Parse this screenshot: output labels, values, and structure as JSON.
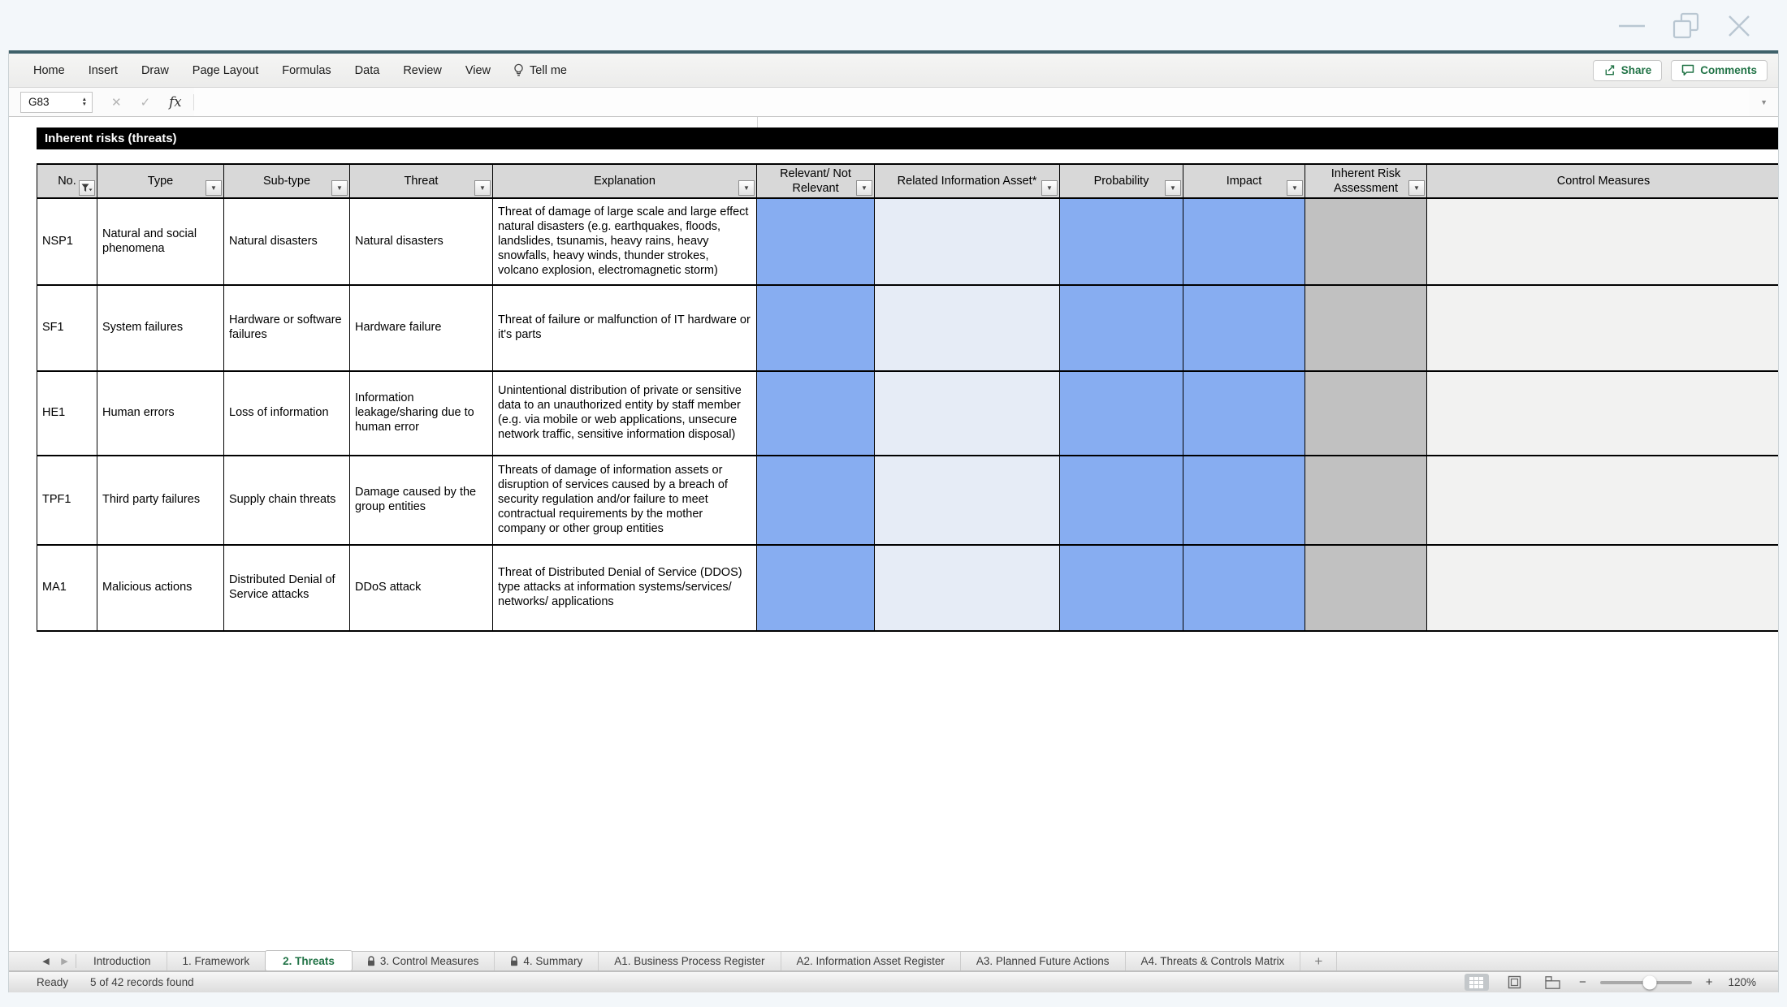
{
  "menu": {
    "items": [
      "Home",
      "Insert",
      "Draw",
      "Page Layout",
      "Formulas",
      "Data",
      "Review",
      "View"
    ],
    "tell_me": "Tell me"
  },
  "actions": {
    "share": "Share",
    "comments": "Comments"
  },
  "formula_bar": {
    "cell_ref": "G83"
  },
  "icons": {
    "spinner_up": "▲",
    "spinner_down": "▼",
    "cancel": "✕",
    "enter": "✓",
    "fx": "fx",
    "dropdown_arrow": "▼",
    "tab_prev": "◀",
    "tab_next": "▶",
    "zoom_out": "−",
    "zoom_in": "+"
  },
  "table": {
    "title": "Inherent risks (threats)",
    "headers": [
      {
        "label": "No.",
        "filter": "funnel"
      },
      {
        "label": "Type",
        "filter": "dropdown"
      },
      {
        "label": "Sub-type",
        "filter": "dropdown"
      },
      {
        "label": "Threat",
        "filter": "dropdown"
      },
      {
        "label": "Explanation",
        "filter": "dropdown"
      },
      {
        "label": "Relevant/ Not Relevant",
        "filter": "dropdown"
      },
      {
        "label": "Related Information Asset*",
        "filter": "dropdown"
      },
      {
        "label": "Probability",
        "filter": "dropdown"
      },
      {
        "label": "Impact",
        "filter": "dropdown"
      },
      {
        "label": "Inherent Risk Assessment",
        "filter": "dropdown"
      },
      {
        "label": "Control Measures",
        "filter": "none"
      }
    ],
    "rows": [
      {
        "no": "NSP1",
        "type": "Natural and social phenomena",
        "subtype": "Natural disasters",
        "threat": "Natural disasters",
        "explanation": "Threat of damage of large scale and large effect natural disasters (e.g. earthquakes, floods, landslides, tsunamis, heavy rains, heavy snowfalls, heavy winds, thunder strokes, volcano explosion, electromagnetic storm)"
      },
      {
        "no": "SF1",
        "type": "System failures",
        "subtype": "Hardware or software failures",
        "threat": "Hardware failure",
        "explanation": "Threat of failure or malfunction of IT hardware or it's parts"
      },
      {
        "no": "HE1",
        "type": "Human errors",
        "subtype": "Loss of information",
        "threat": "Information leakage/sharing due to human error",
        "explanation": "Unintentional distribution of private or sensitive data to an unauthorized entity by staff member (e.g. via mobile or web applications, unsecure network traffic, sensitive information disposal)"
      },
      {
        "no": "TPF1",
        "type": "Third party failures",
        "subtype": "Supply chain threats",
        "threat": "Damage caused by the group entities",
        "explanation": "Threats of damage of information assets or disruption of services caused by a breach of security regulation and/or failure to meet contractual requirements by the mother company or other group entities"
      },
      {
        "no": "MA1",
        "type": "Malicious actions",
        "subtype": "Distributed Denial of Service attacks",
        "threat": "DDoS attack",
        "explanation": "Threat of Distributed Denial of Service (DDOS) type attacks at information systems/services/ networks/ applications"
      }
    ]
  },
  "sheet_tabs": {
    "tabs": [
      {
        "label": "Introduction",
        "active": false,
        "locked": false
      },
      {
        "label": "1. Framework",
        "active": false,
        "locked": false
      },
      {
        "label": "2. Threats",
        "active": true,
        "locked": false
      },
      {
        "label": "3. Control Measures",
        "active": false,
        "locked": true
      },
      {
        "label": "4. Summary",
        "active": false,
        "locked": true
      },
      {
        "label": "A1. Business Process Register",
        "active": false,
        "locked": false
      },
      {
        "label": "A2. Information Asset Register",
        "active": false,
        "locked": false
      },
      {
        "label": "A3. Planned Future Actions",
        "active": false,
        "locked": false
      },
      {
        "label": "A4. Threats & Controls Matrix",
        "active": false,
        "locked": false
      }
    ],
    "add": "+"
  },
  "status_bar": {
    "mode": "Ready",
    "records": "5 of 42 records found",
    "zoom_level": "120%"
  },
  "colors": {
    "accent_green": "#217346",
    "cell_blue": "#87ADF1",
    "cell_light_blue": "#E6ECF6",
    "cell_gray": "#C1C1C1",
    "cell_faint": "#F2F2F1",
    "header_gray": "#D8D8D8"
  }
}
